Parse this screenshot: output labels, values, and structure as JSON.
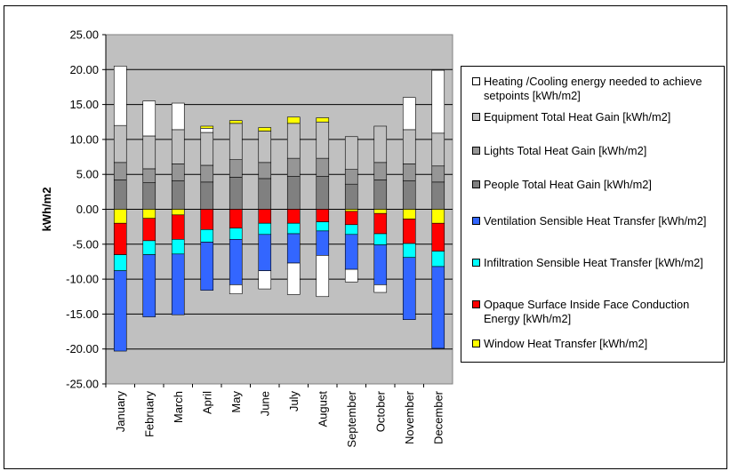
{
  "chart_data": {
    "type": "bar",
    "stacked": true,
    "title": "",
    "xlabel": "",
    "ylabel": "kWh/m2",
    "ylim": [
      -25,
      25
    ],
    "ytick_step": 5,
    "ytick_labels": [
      "25.00",
      "20.00",
      "15.00",
      "10.00",
      "5.00",
      "0.00",
      "-5.00",
      "-10.00",
      "-15.00",
      "-20.00",
      "-25.00"
    ],
    "grid": true,
    "legend_position": "right",
    "plot_background": "#c0c0c0",
    "categories": [
      "January",
      "February",
      "March",
      "April",
      "May",
      "June",
      "July",
      "August",
      "September",
      "October",
      "November",
      "December"
    ],
    "series": [
      {
        "name": "People Total Heat Gain [kWh/m2]",
        "color": "#808080",
        "values": [
          4.2,
          3.8,
          4.1,
          3.9,
          4.6,
          4.4,
          4.7,
          4.7,
          3.6,
          4.2,
          4.1,
          3.9
        ]
      },
      {
        "name": "Lights Total Heat Gain [kWh/m2]",
        "color": "#969696",
        "values": [
          2.5,
          2.0,
          2.4,
          2.4,
          2.5,
          2.3,
          2.6,
          2.6,
          2.1,
          2.5,
          2.4,
          2.3
        ]
      },
      {
        "name": "Equipment Total Heat Gain [kWh/m2]",
        "color": "#c0c0c0",
        "values": [
          5.3,
          4.7,
          4.9,
          4.7,
          5.2,
          4.5,
          5.0,
          5.2,
          4.7,
          5.2,
          4.9,
          4.7
        ]
      },
      {
        "name": "Heating /Cooling energy needed to achieve setpoints [kWh/m2]",
        "color": "#ffffff",
        "values": [
          8.5,
          5.0,
          3.8,
          0.6,
          0,
          0,
          0,
          0,
          0,
          0,
          4.6,
          9.0
        ]
      },
      {
        "name": "Window Heat Transfer [kWh/m2]",
        "color": "#ffff00",
        "values": [
          -2.0,
          -1.3,
          -0.8,
          0.3,
          0.4,
          0.5,
          0.9,
          0.6,
          -0.3,
          -0.6,
          -1.4,
          -2.0
        ]
      },
      {
        "name": "Opaque Surface Inside Face Conduction  Energy [kWh/m2]",
        "color": "#ff0000",
        "values": [
          -4.5,
          -3.2,
          -3.5,
          -2.9,
          -2.7,
          -2.0,
          -2.0,
          -1.8,
          -1.9,
          -2.9,
          -3.5,
          -4.0
        ]
      },
      {
        "name": "Infiltration Sensible Heat Transfer [kWh/m2]",
        "color": "#00ffff",
        "values": [
          -2.3,
          -2.0,
          -2.1,
          -1.8,
          -1.6,
          -1.6,
          -1.5,
          -1.3,
          -1.4,
          -1.6,
          -2.0,
          -2.2
        ]
      },
      {
        "name": "Ventilation Sensible Heat Transfer [kWh/m2]",
        "color": "#3366ff",
        "values": [
          -11.5,
          -8.9,
          -8.7,
          -6.9,
          -6.5,
          -5.2,
          -4.2,
          -3.5,
          -5.0,
          -5.7,
          -8.9,
          -11.7
        ]
      },
      {
        "name": "Heating /Cooling energy needed to achieve setpoints [kWh/m2]",
        "color": "#ffffff",
        "values": [
          0,
          0,
          0,
          0,
          -1.3,
          -2.6,
          -4.5,
          -5.9,
          -1.8,
          -1.1,
          0,
          0
        ]
      }
    ],
    "legend": [
      {
        "text": "Heating /Cooling energy needed to achieve setpoints [kWh/m2]",
        "color": "#ffffff"
      },
      {
        "text": "Equipment Total Heat Gain [kWh/m2]",
        "color": "#c0c0c0"
      },
      {
        "text": "Lights Total Heat Gain [kWh/m2]",
        "color": "#969696"
      },
      {
        "text": "People Total Heat Gain [kWh/m2]",
        "color": "#808080"
      },
      {
        "text": "Ventilation Sensible Heat Transfer [kWh/m2]",
        "color": "#3366ff"
      },
      {
        "text": "Infiltration Sensible Heat Transfer [kWh/m2]",
        "color": "#00ffff"
      },
      {
        "text": "Opaque Surface Inside Face Conduction  Energy [kWh/m2]",
        "color": "#ff0000"
      },
      {
        "text": "Window Heat Transfer [kWh/m2]",
        "color": "#ffff00"
      }
    ]
  }
}
